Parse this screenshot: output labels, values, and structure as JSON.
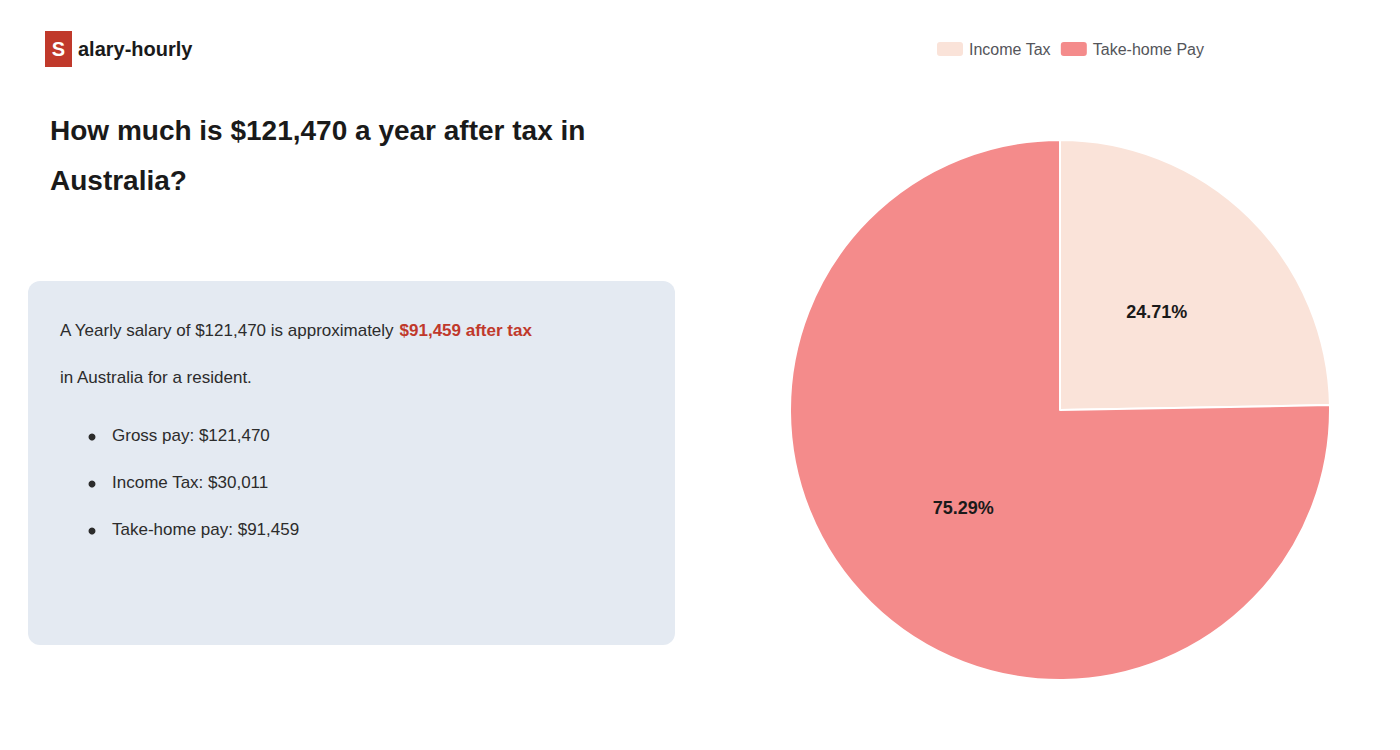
{
  "chart_data": {
    "type": "pie",
    "title": "How much is $121,470 a year after tax in\nAustralia?",
    "categories": [
      "Income Tax",
      "Take-home Pay"
    ],
    "values": [
      24.71,
      75.29
    ],
    "value_labels": [
      "24.71%",
      "75.29%"
    ],
    "colors": [
      "#fae3d9",
      "#f48b8b"
    ],
    "data_labels": true,
    "legend": "top",
    "annotations": [
      {
        "text": "S",
        "color": "#c0392b"
      },
      {
        "text": "alary-hourly"
      },
      {
        "text": "A Yearly salary of $121,470 is approximately "
      },
      {
        "text": "$91,459 after tax",
        "color": "#c0392b"
      },
      {
        "text": "in Australia for a resident."
      },
      {
        "text": "Gross pay: $121,470"
      },
      {
        "text": "Income Tax: $30,011"
      },
      {
        "text": "Take-home pay: $91,459"
      }
    ]
  }
}
